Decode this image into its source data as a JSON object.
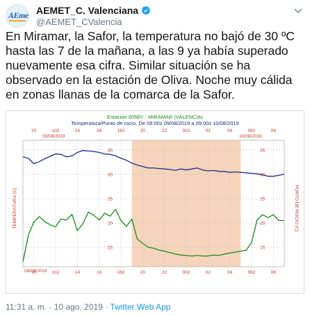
{
  "account": {
    "display_name": "AEMET_C. Valenciana",
    "handle": "@AEMET_CValencia",
    "avatar_text": "AEmet",
    "verified": true
  },
  "tweet": {
    "text": "En Miramar, la Safor, la temperatura no bajó de 30 ºC hasta las 7 de la mañana, a las 9 ya había superado nuevamente esa cifra. Similar situación se ha observado en la estación de Oliva. Noche muy cálida en zonas llanas de la comarca de la Safor."
  },
  "chart_data": {
    "type": "line",
    "title": "Estación 8058Y - MIRAMAR (VALENCIA)",
    "subtitle": "Temperatura/Punto de rocío. De 09:00z 09/08/2019 a 09:00z 10/08/2019",
    "ylabel_left": "TEMPERATURA (C)",
    "ylabel_right": "PUNTO DE ROCIO (C)",
    "date_start_label": "09/08/2019",
    "date_end_label": "10/08/2019",
    "date_bottom_label": "09/08/2019",
    "x_ticks_top": [
      "20",
      "102",
      "14",
      "16",
      "182",
      "20",
      "22",
      "002",
      "02",
      "04",
      "062",
      "08"
    ],
    "x_ticks_bottom": [
      "10",
      "102",
      "14",
      "16",
      "182",
      "20",
      "22",
      "002",
      "02",
      "04",
      "062",
      "08"
    ],
    "y_ticks": [
      "35",
      "30",
      "25",
      "20",
      "15"
    ],
    "night_shading": {
      "from_hour": 19,
      "to_hour": 5,
      "color": "#f6d5bc"
    },
    "grid": true,
    "x": [
      9,
      9.5,
      10,
      10.5,
      11,
      11.5,
      12,
      12.5,
      13,
      13.5,
      14,
      14.5,
      15,
      15.5,
      16,
      16.5,
      17,
      17.5,
      18,
      18.5,
      19,
      19.5,
      20,
      20.5,
      21,
      21.5,
      22,
      22.5,
      23,
      23.5,
      24,
      24.5,
      25,
      25.5,
      26,
      26.5,
      27,
      27.5,
      28,
      28.5,
      29,
      29.5,
      30,
      30.5,
      31,
      31.5,
      32,
      32.5,
      33
    ],
    "series": [
      {
        "name": "Temperatura",
        "color": "#1c2a86",
        "values": [
          33.6,
          33.3,
          32.2,
          32.6,
          33.2,
          33.7,
          34.2,
          34.1,
          33.6,
          33.8,
          34.5,
          34.9,
          34.8,
          34.7,
          34.5,
          34.2,
          34.1,
          33.8,
          33.3,
          32.9,
          32.3,
          31.9,
          31.6,
          31.3,
          31.3,
          31.2,
          31.1,
          31.0,
          30.8,
          31.1,
          30.9,
          31.1,
          31.3,
          30.9,
          30.7,
          30.8,
          30.6,
          30.6,
          30.4,
          30.5,
          30.4,
          30.3,
          30.2,
          30.1,
          29.9,
          29.6,
          29.6,
          29.8,
          30.0
        ]
      },
      {
        "name": "Punto de rocío",
        "color": "#1a8a1a",
        "values": [
          12.0,
          17.5,
          20.2,
          21.3,
          20.3,
          19.6,
          19.2,
          20.8,
          20.6,
          21.8,
          18.4,
          19.8,
          22.2,
          21.6,
          20.6,
          22.0,
          21.4,
          22.8,
          20.5,
          19.3,
          20.8,
          16.7,
          15.8,
          15.0,
          14.8,
          14.4,
          14.2,
          13.9,
          13.6,
          13.4,
          13.3,
          13.2,
          13.3,
          13.2,
          13.2,
          13.4,
          13.3,
          13.6,
          13.8,
          14.0,
          14.2,
          14.4,
          16.0,
          20.6,
          21.7,
          21.1,
          21.7,
          20.5,
          20.5
        ]
      }
    ],
    "xlim": [
      9,
      33
    ],
    "ylim": [
      11,
      37
    ]
  },
  "footer": {
    "time_date": "11:31 a. m. · 10 ago. 2019",
    "separator": " · ",
    "client": "Twitter Web App"
  },
  "colors": {
    "link": "#1b95e0",
    "verified": "#1da1f2",
    "muted": "#657786",
    "axis_red": "#c0392b"
  }
}
